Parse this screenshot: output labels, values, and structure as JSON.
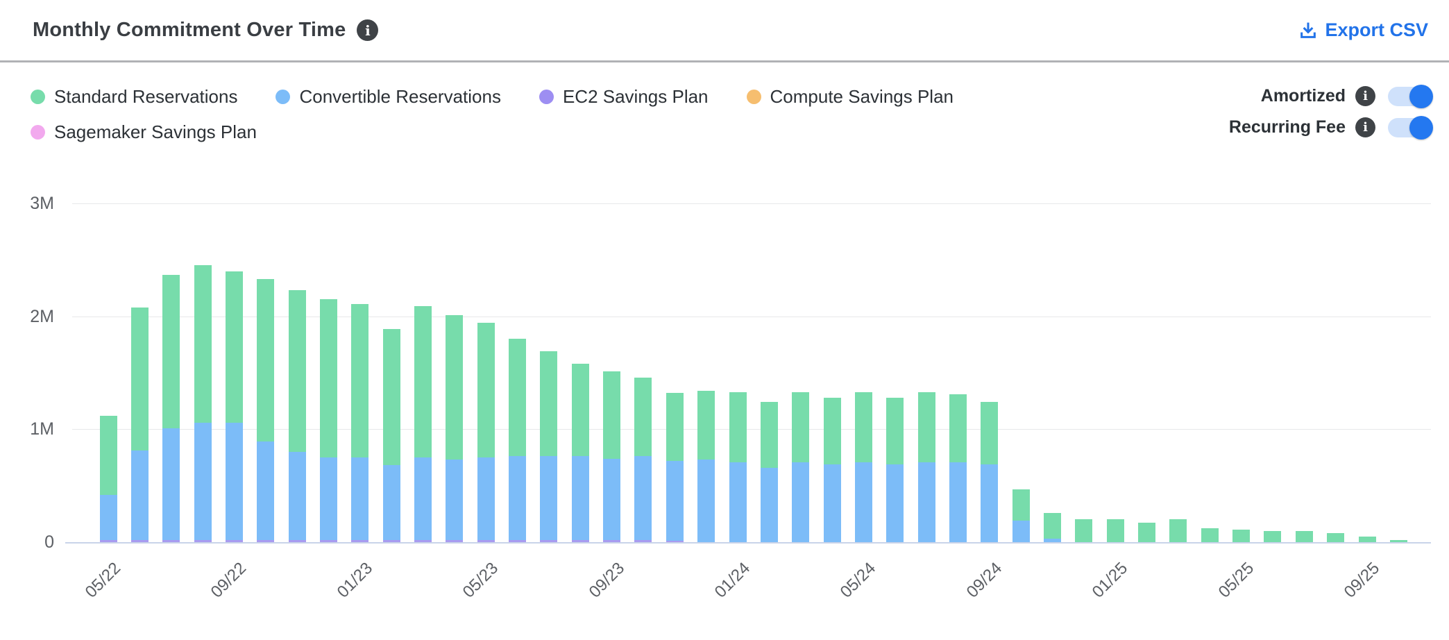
{
  "header": {
    "title": "Monthly Commitment Over Time",
    "export_label": "Export CSV"
  },
  "legend": {
    "items": [
      {
        "label": "Standard Reservations",
        "color": "#77dcab"
      },
      {
        "label": "Convertible Reservations",
        "color": "#7cbcf8"
      },
      {
        "label": "EC2 Savings Plan",
        "color": "#9d8ef2"
      },
      {
        "label": "Compute Savings Plan",
        "color": "#f6be6f"
      },
      {
        "label": "Sagemaker Savings Plan",
        "color": "#f2a9ee"
      }
    ]
  },
  "toggles": [
    {
      "label": "Amortized",
      "state": "on"
    },
    {
      "label": "Recurring Fee",
      "state": "on"
    }
  ],
  "chart_data": {
    "type": "bar",
    "stacked": true,
    "title": "Monthly Commitment Over Time",
    "unit": "USD",
    "ylim": [
      0,
      3000000
    ],
    "yticks": [
      "0",
      "1M",
      "2M",
      "3M"
    ],
    "grid": true,
    "x_tick_every": 4,
    "x": [
      "05/22",
      "06/22",
      "07/22",
      "08/22",
      "09/22",
      "10/22",
      "11/22",
      "12/22",
      "01/23",
      "02/23",
      "03/23",
      "04/23",
      "05/23",
      "06/23",
      "07/23",
      "08/23",
      "09/23",
      "10/23",
      "11/23",
      "12/23",
      "01/24",
      "02/24",
      "03/24",
      "04/24",
      "05/24",
      "06/24",
      "07/24",
      "08/24",
      "09/24",
      "10/24",
      "11/24",
      "12/24",
      "01/25",
      "02/25",
      "03/25",
      "04/25",
      "05/25",
      "06/25",
      "07/25",
      "08/25",
      "09/25",
      "10/25"
    ],
    "x_tick_labels": [
      "05/22",
      "09/22",
      "01/23",
      "05/23",
      "09/23",
      "01/24",
      "05/24",
      "09/24",
      "01/25",
      "05/25",
      "09/25"
    ],
    "stack_order_bottom_to_top": [
      "Sagemaker Savings Plan",
      "Compute Savings Plan",
      "EC2 Savings Plan",
      "Convertible Reservations",
      "Standard Reservations"
    ],
    "series": [
      {
        "name": "Standard Reservations",
        "color": "#77dcab",
        "values_millions": [
          0.7,
          1.27,
          1.36,
          1.39,
          1.34,
          1.44,
          1.43,
          1.4,
          1.36,
          1.21,
          1.34,
          1.28,
          1.19,
          1.04,
          0.93,
          0.82,
          0.77,
          0.7,
          0.6,
          0.61,
          0.62,
          0.58,
          0.62,
          0.59,
          0.62,
          0.59,
          0.62,
          0.6,
          0.55,
          0.28,
          0.23,
          0.2,
          0.2,
          0.17,
          0.2,
          0.12,
          0.11,
          0.1,
          0.1,
          0.08,
          0.05,
          0.02
        ]
      },
      {
        "name": "Convertible Reservations",
        "color": "#7cbcf8",
        "values_millions": [
          0.4,
          0.79,
          0.99,
          1.04,
          1.04,
          0.87,
          0.78,
          0.73,
          0.73,
          0.66,
          0.73,
          0.71,
          0.73,
          0.74,
          0.74,
          0.74,
          0.72,
          0.74,
          0.71,
          0.73,
          0.71,
          0.66,
          0.71,
          0.69,
          0.71,
          0.69,
          0.71,
          0.71,
          0.69,
          0.19,
          0.03,
          0,
          0,
          0,
          0,
          0,
          0,
          0,
          0,
          0,
          0,
          0
        ]
      },
      {
        "name": "EC2 Savings Plan",
        "color": "#a89bf0",
        "values_millions": [
          0.02,
          0.02,
          0.02,
          0.02,
          0.02,
          0.02,
          0.02,
          0.02,
          0.02,
          0.02,
          0.02,
          0.02,
          0.02,
          0.02,
          0.02,
          0.02,
          0.02,
          0.02,
          0.01,
          0,
          0,
          0,
          0,
          0,
          0,
          0,
          0,
          0,
          0,
          0,
          0,
          0,
          0,
          0,
          0,
          0,
          0,
          0,
          0,
          0,
          0,
          0
        ]
      },
      {
        "name": "Compute Savings Plan",
        "color": "#f6be6f",
        "values_millions": [
          0,
          0,
          0,
          0,
          0,
          0,
          0,
          0,
          0,
          0,
          0,
          0,
          0,
          0,
          0,
          0,
          0,
          0,
          0,
          0,
          0,
          0,
          0,
          0,
          0,
          0,
          0,
          0,
          0,
          0,
          0,
          0,
          0,
          0,
          0,
          0,
          0,
          0,
          0,
          0,
          0,
          0
        ]
      },
      {
        "name": "Sagemaker Savings Plan",
        "color": "#f2a9ee",
        "values_millions": [
          0,
          0,
          0,
          0,
          0,
          0,
          0,
          0,
          0,
          0,
          0,
          0,
          0,
          0,
          0,
          0,
          0,
          0,
          0,
          0,
          0,
          0,
          0,
          0,
          0,
          0,
          0,
          0,
          0,
          0,
          0,
          0,
          0,
          0,
          0,
          0,
          0,
          0,
          0,
          0,
          0,
          0
        ]
      }
    ]
  }
}
